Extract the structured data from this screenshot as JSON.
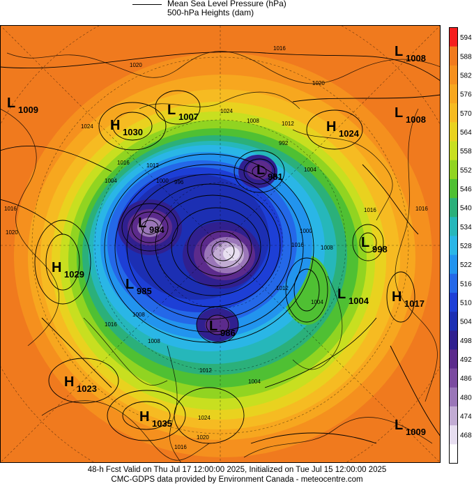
{
  "legend": {
    "line1": "Mean Sea Level Pressure (hPa)",
    "line2": "500-hPa Heights (dam)"
  },
  "colorbar": {
    "ticks": [
      "594",
      "588",
      "582",
      "576",
      "570",
      "564",
      "558",
      "552",
      "546",
      "540",
      "534",
      "528",
      "522",
      "516",
      "510",
      "504",
      "498",
      "492",
      "486",
      "480",
      "474",
      "468"
    ],
    "colors": [
      "#f51e1e",
      "#f07a1e",
      "#f5901e",
      "#f7a71f",
      "#f6bb22",
      "#e9d21f",
      "#c8df20",
      "#91d421",
      "#4fc033",
      "#2bb07a",
      "#26b7ba",
      "#2ab6e6",
      "#2294ee",
      "#2468e8",
      "#1d3fd6",
      "#1c2fb3",
      "#30208f",
      "#5c2b8c",
      "#7b4aa0",
      "#9a76b8",
      "#c2acd4",
      "#e7def0",
      "#ffffff"
    ]
  },
  "systems": [
    {
      "type": "L",
      "value": "1008"
    },
    {
      "type": "L",
      "value": "1009"
    },
    {
      "type": "L",
      "value": "1007"
    },
    {
      "type": "H",
      "value": "1030"
    },
    {
      "type": "H",
      "value": "1024"
    },
    {
      "type": "L",
      "value": "1008"
    },
    {
      "type": "L",
      "value": "981"
    },
    {
      "type": "L",
      "value": "984"
    },
    {
      "type": "L",
      "value": "998"
    },
    {
      "type": "H",
      "value": "1029"
    },
    {
      "type": "L",
      "value": "985"
    },
    {
      "type": "L",
      "value": "1004"
    },
    {
      "type": "H",
      "value": "1017"
    },
    {
      "type": "L",
      "value": "986"
    },
    {
      "type": "H",
      "value": "1023"
    },
    {
      "type": "H",
      "value": "1035"
    },
    {
      "type": "L",
      "value": "1009"
    }
  ],
  "isobar_labels": [
    "1016",
    "1020",
    "1024",
    "1016",
    "1012",
    "1008",
    "1004",
    "1000",
    "996",
    "992",
    "1016",
    "1012",
    "1004",
    "1000",
    "1008",
    "1012",
    "1004",
    "1016",
    "1020",
    "1024",
    "1008",
    "1016",
    "1012",
    "1008",
    "1004",
    "1016",
    "1024",
    "1020",
    "1016",
    "1016",
    "1020"
  ],
  "footer": {
    "line1": "48-h Fcst Valid on Thu Jul 17 12:00:00 2025, Initialized on Tue Jul 15 12:00:00 2025",
    "line2": "CMC-GDPS data provided by Environment Canada - meteocentre.com"
  }
}
